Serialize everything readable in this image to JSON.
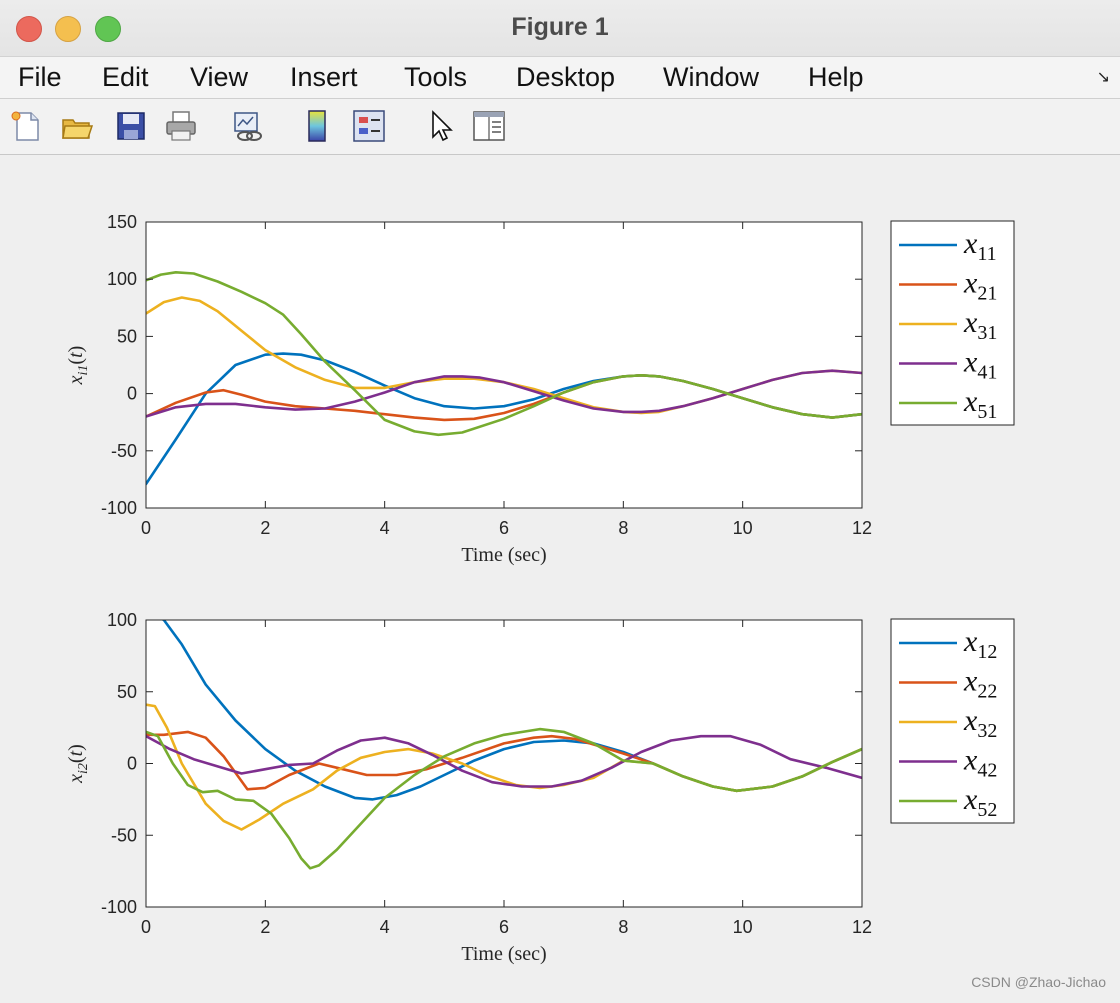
{
  "window": {
    "title": "Figure 1"
  },
  "menu": [
    "File",
    "Edit",
    "View",
    "Insert",
    "Tools",
    "Desktop",
    "Window",
    "Help"
  ],
  "toolbar": [
    "new-figure-icon",
    "open-file-icon",
    "save-icon",
    "print-icon",
    "link-plot-icon",
    "colorbar-icon",
    "legend-icon",
    "pointer-icon",
    "property-inspector-icon"
  ],
  "watermark": "CSDN @Zhao-Jichao",
  "colors": [
    "#0072BD",
    "#D95319",
    "#EDB120",
    "#7E2F8E",
    "#77AC30"
  ],
  "chart_data": [
    {
      "type": "line",
      "xlabel": "Time (sec)",
      "ylabel_base": "x",
      "ylabel_sub": "i1",
      "ylabel_arg": "(t)",
      "xlim": [
        0,
        12
      ],
      "ylim": [
        -100,
        150
      ],
      "xticks": [
        0,
        2,
        4,
        6,
        8,
        10,
        12
      ],
      "yticks": [
        -100,
        -50,
        0,
        50,
        100,
        150
      ],
      "legend_position": "outside-right",
      "series": [
        {
          "name": "x11",
          "name_base": "x",
          "name_sub": "11",
          "color": "#0072BD",
          "x": [
            0,
            0.5,
            1,
            1.5,
            2,
            2.3,
            2.6,
            3,
            3.5,
            4,
            4.5,
            5,
            5.5,
            6,
            6.5,
            7,
            7.5,
            8,
            8.3,
            8.6,
            9,
            9.5,
            10,
            10.5,
            11,
            11.5,
            12
          ],
          "y": [
            -79,
            -40,
            0,
            25,
            34,
            35,
            34,
            29,
            19,
            7,
            -4,
            -11,
            -13,
            -11,
            -5,
            4,
            11,
            15,
            16,
            15,
            11,
            4,
            -4,
            -12,
            -18,
            -21,
            -18
          ]
        },
        {
          "name": "x21",
          "name_base": "x",
          "name_sub": "21",
          "color": "#D95319",
          "x": [
            0,
            0.5,
            1,
            1.3,
            1.6,
            2,
            2.5,
            3,
            3.5,
            4,
            4.5,
            5,
            5.5,
            6,
            6.5,
            7,
            7.5,
            8,
            8.3,
            8.6,
            9,
            9.5,
            10,
            10.5,
            11,
            11.5,
            12
          ],
          "y": [
            -20,
            -8,
            1,
            3,
            -1,
            -7,
            -11,
            -13,
            -15,
            -18,
            -21,
            -23,
            -22,
            -17,
            -9,
            1,
            10,
            15,
            16,
            15,
            11,
            4,
            -4,
            -12,
            -18,
            -21,
            -18
          ]
        },
        {
          "name": "x31",
          "name_base": "x",
          "name_sub": "31",
          "color": "#EDB120",
          "x": [
            0,
            0.3,
            0.6,
            0.9,
            1.2,
            1.6,
            2,
            2.5,
            3,
            3.5,
            4,
            4.5,
            5,
            5.5,
            6,
            6.5,
            7,
            7.5,
            8,
            8.3,
            8.6,
            9,
            9.5,
            10,
            10.5,
            11,
            11.5,
            12
          ],
          "y": [
            70,
            80,
            84,
            81,
            72,
            55,
            38,
            23,
            12,
            5,
            5,
            10,
            13,
            13,
            10,
            4,
            -4,
            -12,
            -16,
            -17,
            -16,
            -11,
            -4,
            4,
            12,
            18,
            20,
            18
          ]
        },
        {
          "name": "x41",
          "name_base": "x",
          "name_sub": "41",
          "color": "#7E2F8E",
          "x": [
            0,
            0.5,
            1,
            1.5,
            2,
            2.5,
            3,
            3.5,
            4,
            4.5,
            5,
            5.3,
            5.6,
            6,
            6.5,
            7,
            7.5,
            8,
            8.3,
            8.6,
            9,
            9.5,
            10,
            10.5,
            11,
            11.5,
            12
          ],
          "y": [
            -20,
            -12,
            -9,
            -9,
            -12,
            -14,
            -13,
            -7,
            1,
            10,
            15,
            15,
            14,
            10,
            2,
            -6,
            -13,
            -16,
            -16,
            -15,
            -11,
            -4,
            4,
            12,
            18,
            20,
            18
          ]
        },
        {
          "name": "x51",
          "name_base": "x",
          "name_sub": "51",
          "color": "#77AC30",
          "x": [
            0,
            0.25,
            0.5,
            0.8,
            1.2,
            1.6,
            2,
            2.3,
            2.6,
            3,
            3.5,
            4,
            4.5,
            4.9,
            5.3,
            6,
            6.5,
            7,
            7.5,
            8,
            8.3,
            8.6,
            9,
            9.5,
            10,
            10.5,
            11,
            11.5,
            12
          ],
          "y": [
            99,
            104,
            106,
            105,
            98,
            89,
            79,
            69,
            52,
            28,
            3,
            -23,
            -33,
            -36,
            -34,
            -22,
            -11,
            1,
            10,
            15,
            16,
            15,
            11,
            4,
            -4,
            -12,
            -18,
            -21,
            -18
          ]
        }
      ]
    },
    {
      "type": "line",
      "xlabel": "Time (sec)",
      "ylabel_base": "x",
      "ylabel_sub": "i2",
      "ylabel_arg": "(t)",
      "xlim": [
        0,
        12
      ],
      "ylim": [
        -100,
        100
      ],
      "xticks": [
        0,
        2,
        4,
        6,
        8,
        10,
        12
      ],
      "yticks": [
        -100,
        -50,
        0,
        50,
        100
      ],
      "legend_position": "outside-right",
      "series": [
        {
          "name": "x12",
          "name_base": "x",
          "name_sub": "12",
          "color": "#0072BD",
          "x": [
            0,
            0.15,
            0.3,
            0.6,
            1,
            1.5,
            2,
            2.5,
            3,
            3.5,
            3.8,
            4.2,
            4.6,
            5,
            5.5,
            6,
            6.5,
            7,
            7.5,
            8,
            8.5,
            9,
            9.5,
            9.9,
            10.5,
            11,
            11.5,
            12
          ],
          "y": [
            101,
            103,
            100,
            83,
            55,
            30,
            10,
            -5,
            -16,
            -24,
            -25,
            -22,
            -16,
            -8,
            2,
            10,
            15,
            16,
            14,
            8,
            0,
            -9,
            -16,
            -19,
            -16,
            -9,
            1,
            10
          ]
        },
        {
          "name": "x22",
          "name_base": "x",
          "name_sub": "22",
          "color": "#D95319",
          "x": [
            0,
            0.3,
            0.7,
            1,
            1.3,
            1.7,
            2,
            2.4,
            2.9,
            3.3,
            3.7,
            4.2,
            4.7,
            5.3,
            6,
            6.5,
            6.8,
            7.2,
            7.6,
            8,
            8.5,
            9,
            9.5,
            9.9,
            10.5,
            11,
            11.5,
            12
          ],
          "y": [
            20,
            20,
            22,
            18,
            5,
            -18,
            -17,
            -8,
            0,
            -4,
            -8,
            -8,
            -4,
            4,
            14,
            18,
            19,
            17,
            12,
            7,
            0,
            -9,
            -16,
            -19,
            -16,
            -9,
            1,
            10
          ]
        },
        {
          "name": "x32",
          "name_base": "x",
          "name_sub": "32",
          "color": "#EDB120",
          "x": [
            0,
            0.15,
            0.35,
            0.6,
            1,
            1.3,
            1.6,
            1.9,
            2.3,
            2.8,
            3.2,
            3.6,
            4,
            4.4,
            4.8,
            5.3,
            5.7,
            6.2,
            6.6,
            7,
            7.5,
            8,
            8.5,
            9,
            9.5,
            9.9,
            10.5,
            11,
            11.5,
            12
          ],
          "y": [
            41,
            40,
            25,
            0,
            -28,
            -40,
            -46,
            -39,
            -28,
            -18,
            -5,
            4,
            8,
            10,
            7,
            0,
            -8,
            -15,
            -17,
            -15,
            -10,
            2,
            0,
            -9,
            -16,
            -19,
            -16,
            -9,
            1,
            10
          ]
        },
        {
          "name": "x42",
          "name_base": "x",
          "name_sub": "42",
          "color": "#7E2F8E",
          "x": [
            0,
            0.4,
            0.8,
            1.2,
            1.6,
            2,
            2.4,
            2.8,
            3.2,
            3.6,
            4,
            4.4,
            4.8,
            5.3,
            5.8,
            6.3,
            6.8,
            7.3,
            7.8,
            8.3,
            8.8,
            9.3,
            9.8,
            10.3,
            10.8,
            11.4,
            12
          ],
          "y": [
            19,
            10,
            3,
            -2,
            -7,
            -4,
            -1,
            0,
            9,
            16,
            18,
            14,
            6,
            -5,
            -13,
            -16,
            -16,
            -12,
            -3,
            8,
            16,
            19,
            19,
            13,
            3,
            -3,
            -10
          ]
        },
        {
          "name": "x52",
          "name_base": "x",
          "name_sub": "52",
          "color": "#77AC30",
          "x": [
            0,
            0.2,
            0.45,
            0.7,
            0.95,
            1.2,
            1.5,
            1.8,
            2.1,
            2.4,
            2.6,
            2.75,
            2.9,
            3.2,
            3.6,
            4,
            4.5,
            5,
            5.5,
            6,
            6.6,
            7,
            7.5,
            8,
            8.5,
            9,
            9.5,
            9.9,
            10.5,
            11,
            11.5,
            12
          ],
          "y": [
            22,
            19,
            0,
            -15,
            -20,
            -19,
            -25,
            -26,
            -35,
            -52,
            -66,
            -73,
            -71,
            -60,
            -42,
            -24,
            -8,
            5,
            14,
            20,
            24,
            22,
            14,
            2,
            0,
            -9,
            -16,
            -19,
            -16,
            -9,
            1,
            10
          ]
        }
      ]
    }
  ]
}
